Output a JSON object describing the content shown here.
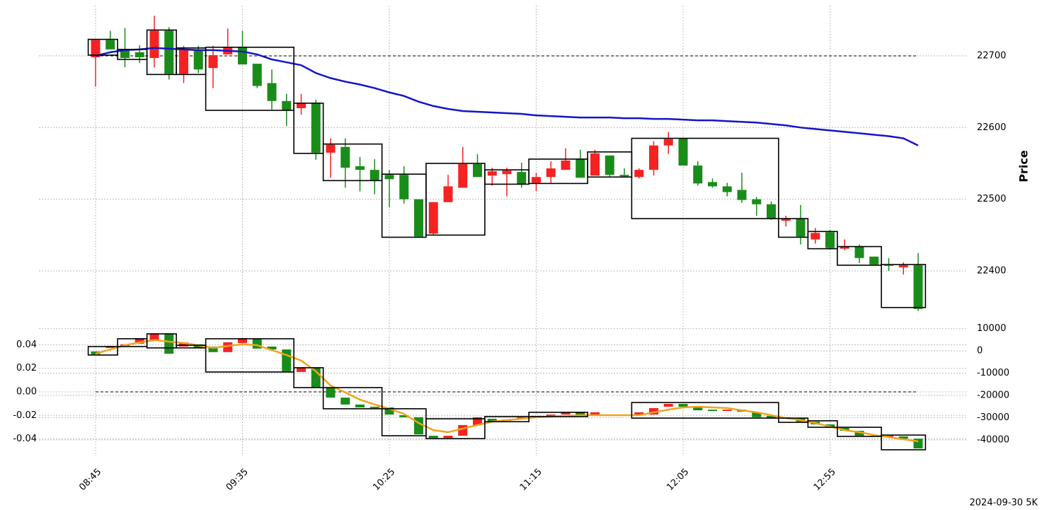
{
  "chart_data": [
    {
      "type": "candlestick",
      "ylabel": "Price",
      "ylim": [
        22330,
        22770
      ],
      "yticks": [
        22400,
        22500,
        22600,
        22700
      ],
      "grid": true,
      "up_color": "#f52222",
      "down_color": "#1a8c1a",
      "ref_level": 22700,
      "open": [
        22698,
        22722,
        22709,
        22705,
        22697,
        22735,
        22675,
        22709,
        22683,
        22702,
        22712,
        22689,
        22662,
        22637,
        22627,
        22634,
        22565,
        22573,
        22546,
        22541,
        22534,
        22534,
        22500,
        22452,
        22496,
        22516,
        22549,
        22533,
        22535,
        22538,
        22523,
        22531,
        22541,
        22556,
        22533,
        22561,
        22534,
        22531,
        22541,
        22575,
        22585,
        22547,
        22524,
        22518,
        22513,
        22500,
        22493,
        22470,
        22473,
        22444,
        22454,
        22431,
        22434,
        22420,
        22408,
        22405,
        22408
      ],
      "high": [
        22722,
        22735,
        22739,
        22715,
        22756,
        22740,
        22714,
        22714,
        22714,
        22738,
        22735,
        22689,
        22681,
        22647,
        22647,
        22639,
        22585,
        22585,
        22559,
        22556,
        22541,
        22546,
        22500,
        22496,
        22534,
        22573,
        22563,
        22544,
        22544,
        22551,
        22537,
        22553,
        22571,
        22569,
        22569,
        22561,
        22543,
        22543,
        22581,
        22594,
        22585,
        22553,
        22529,
        22523,
        22537,
        22503,
        22497,
        22477,
        22492,
        22460,
        22457,
        22444,
        22437,
        22420,
        22418,
        22412,
        22425
      ],
      "low": [
        22657,
        22709,
        22684,
        22690,
        22684,
        22667,
        22662,
        22676,
        22655,
        22702,
        22688,
        22655,
        22625,
        22602,
        22618,
        22555,
        22530,
        22516,
        22511,
        22507,
        22489,
        22494,
        22448,
        22451,
        22496,
        22516,
        22531,
        22519,
        22504,
        22516,
        22511,
        22523,
        22541,
        22530,
        22533,
        22531,
        22532,
        22529,
        22533,
        22563,
        22547,
        22519,
        22516,
        22504,
        22495,
        22477,
        22471,
        22462,
        22437,
        22438,
        22430,
        22429,
        22411,
        22409,
        22400,
        22395,
        22344
      ],
      "close": [
        22722,
        22709,
        22697,
        22698,
        22735,
        22675,
        22709,
        22681,
        22701,
        22712,
        22688,
        22658,
        22637,
        22624,
        22634,
        22565,
        22576,
        22544,
        22541,
        22526,
        22528,
        22500,
        22448,
        22496,
        22518,
        22549,
        22531,
        22539,
        22540,
        22521,
        22531,
        22543,
        22554,
        22530,
        22564,
        22534,
        22532,
        22541,
        22575,
        22584,
        22547,
        22522,
        22518,
        22510,
        22499,
        22493,
        22473,
        22473,
        22448,
        22453,
        22432,
        22434,
        22418,
        22409,
        22407,
        22408,
        22347
      ],
      "series": [
        {
          "color": "#1515c8",
          "values": [
            22700,
            22705,
            22708,
            22709,
            22711,
            22710,
            22709,
            22708,
            22708,
            22707,
            22706,
            22702,
            22695,
            22691,
            22687,
            22676,
            22669,
            22664,
            22660,
            22655,
            22649,
            22644,
            22636,
            22630,
            22626,
            22623,
            22622,
            22621,
            22620,
            22619,
            22617,
            22616,
            22615,
            22614,
            22614,
            22614,
            22613,
            22613,
            22612,
            22612,
            22611,
            22610,
            22610,
            22609,
            22608,
            22607,
            22605,
            22603,
            22600,
            22598,
            22596,
            22594,
            22592,
            22590,
            22588,
            22585,
            22575
          ]
        }
      ],
      "boxes": [
        {
          "start": 0,
          "end": 1,
          "low": 22701,
          "high": 22723
        },
        {
          "start": 2,
          "end": 3,
          "low": 22695,
          "high": 22709
        },
        {
          "start": 4,
          "end": 5,
          "low": 22674,
          "high": 22736
        },
        {
          "start": 6,
          "end": 7,
          "low": 22674,
          "high": 22711
        },
        {
          "start": 8,
          "end": 13,
          "low": 22624,
          "high": 22712
        },
        {
          "start": 14,
          "end": 15,
          "low": 22564,
          "high": 22634
        },
        {
          "start": 16,
          "end": 19,
          "low": 22526,
          "high": 22577
        },
        {
          "start": 20,
          "end": 22,
          "low": 22447,
          "high": 22535
        },
        {
          "start": 23,
          "end": 26,
          "low": 22450,
          "high": 22550
        },
        {
          "start": 27,
          "end": 29,
          "low": 22521,
          "high": 22541
        },
        {
          "start": 30,
          "end": 33,
          "low": 22522,
          "high": 22556
        },
        {
          "start": 34,
          "end": 36,
          "low": 22531,
          "high": 22566
        },
        {
          "start": 37,
          "end": 46,
          "low": 22473,
          "high": 22585
        },
        {
          "start": 47,
          "end": 48,
          "low": 22447,
          "high": 22473
        },
        {
          "start": 49,
          "end": 50,
          "low": 22431,
          "high": 22455
        },
        {
          "start": 51,
          "end": 53,
          "low": 22408,
          "high": 22434
        },
        {
          "start": 54,
          "end": 56,
          "low": 22349,
          "high": 22409
        }
      ]
    },
    {
      "type": "candlestick",
      "ylim": [
        -47300,
        11400
      ],
      "yticks": [
        10000,
        0,
        -10000,
        -20000,
        -30000,
        -40000
      ],
      "y2lim": [
        -0.0547,
        0.0565
      ],
      "y2ticks": [
        0.04,
        0.02,
        {
          "value": 0,
          "label": "0.00"
        },
        -0.02,
        -0.04
      ],
      "ref_level_y2": 0,
      "grid": true,
      "up_color": "#f52222",
      "down_color": "#1a8c1a",
      "categories": [
        "08:45",
        null,
        null,
        null,
        null,
        null,
        null,
        null,
        null,
        null,
        "09:35",
        null,
        null,
        null,
        null,
        null,
        null,
        null,
        null,
        null,
        "10:25",
        null,
        null,
        null,
        null,
        null,
        null,
        null,
        null,
        null,
        "11:15",
        null,
        null,
        null,
        null,
        null,
        null,
        null,
        null,
        null,
        "12:05",
        null,
        null,
        null,
        null,
        null,
        null,
        null,
        null,
        null,
        "12:55",
        null,
        null,
        null,
        null,
        null,
        null
      ],
      "open": [
        -300,
        1300,
        2200,
        3200,
        4400,
        7600,
        1900,
        2900,
        1900,
        -600,
        3500,
        5400,
        1900,
        600,
        -9500,
        -7600,
        -16500,
        -21000,
        -24100,
        -25100,
        -25400,
        -28900,
        -29800,
        -38100,
        -39100,
        -38100,
        -33300,
        -30500,
        -31400,
        -30500,
        -29800,
        -29500,
        -28600,
        -27600,
        -28600,
        -28600,
        -28900,
        -28600,
        -28600,
        -25100,
        -23800,
        -25100,
        -26400,
        -27000,
        -26400,
        -27600,
        -29200,
        -30200,
        -30200,
        -31800,
        -33000,
        -34600,
        -35900,
        -38100,
        -38700,
        -38400,
        -39400
      ],
      "close": [
        -1600,
        2200,
        2900,
        5700,
        7600,
        -1300,
        3800,
        1300,
        -600,
        3800,
        5700,
        1000,
        600,
        -9200,
        -7600,
        -16500,
        -21000,
        -24100,
        -25400,
        -25700,
        -28600,
        -29800,
        -37500,
        -39100,
        -38100,
        -33300,
        -29800,
        -31800,
        -30800,
        -29800,
        -29200,
        -28600,
        -27600,
        -29200,
        -27600,
        -29200,
        -29200,
        -27600,
        -25700,
        -23800,
        -25100,
        -26700,
        -27000,
        -26400,
        -27300,
        -29800,
        -30200,
        -29800,
        -31800,
        -33000,
        -34300,
        -35900,
        -38100,
        -38400,
        -38100,
        -39400,
        -43800
      ],
      "series": [
        {
          "color": "#f0a41c",
          "values": [
            -1300,
            600,
            2500,
            3800,
            4800,
            4100,
            3500,
            2500,
            1300,
            2200,
            2900,
            2500,
            300,
            -1900,
            -4400,
            -9200,
            -15600,
            -18700,
            -21900,
            -24100,
            -26000,
            -28300,
            -32400,
            -35600,
            -36500,
            -34900,
            -33300,
            -31800,
            -31100,
            -30500,
            -29800,
            -29500,
            -29200,
            -28900,
            -28900,
            -28900,
            -28900,
            -28900,
            -27600,
            -26400,
            -25400,
            -25100,
            -25400,
            -25700,
            -26700,
            -27600,
            -28900,
            -30200,
            -31100,
            -32400,
            -34000,
            -35600,
            -36500,
            -37800,
            -38700,
            -39700,
            -40600
          ]
        }
      ],
      "boxes": [
        {
          "start": 0,
          "end": 1,
          "low": -1900,
          "high": 1900
        },
        {
          "start": 2,
          "end": 3,
          "low": 1900,
          "high": 5400
        },
        {
          "start": 4,
          "end": 5,
          "low": 1300,
          "high": 7600
        },
        {
          "start": 6,
          "end": 7,
          "low": 1300,
          "high": 2500
        },
        {
          "start": 8,
          "end": 13,
          "low": -9500,
          "high": 5400
        },
        {
          "start": 14,
          "end": 15,
          "low": -16500,
          "high": -7600
        },
        {
          "start": 16,
          "end": 19,
          "low": -26000,
          "high": -16500
        },
        {
          "start": 20,
          "end": 22,
          "low": -38100,
          "high": -26000
        },
        {
          "start": 23,
          "end": 26,
          "low": -39400,
          "high": -30500
        },
        {
          "start": 27,
          "end": 29,
          "low": -31800,
          "high": -29500
        },
        {
          "start": 30,
          "end": 33,
          "low": -29500,
          "high": -27600
        },
        {
          "start": 37,
          "end": 46,
          "low": -30200,
          "high": -23200
        },
        {
          "start": 47,
          "end": 48,
          "low": -32100,
          "high": -30200
        },
        {
          "start": 49,
          "end": 50,
          "low": -34300,
          "high": -31400
        },
        {
          "start": 51,
          "end": 53,
          "low": -38400,
          "high": -34300
        },
        {
          "start": 54,
          "end": 56,
          "low": -44400,
          "high": -37800
        }
      ]
    }
  ],
  "footer": "2024-09-30 5K"
}
